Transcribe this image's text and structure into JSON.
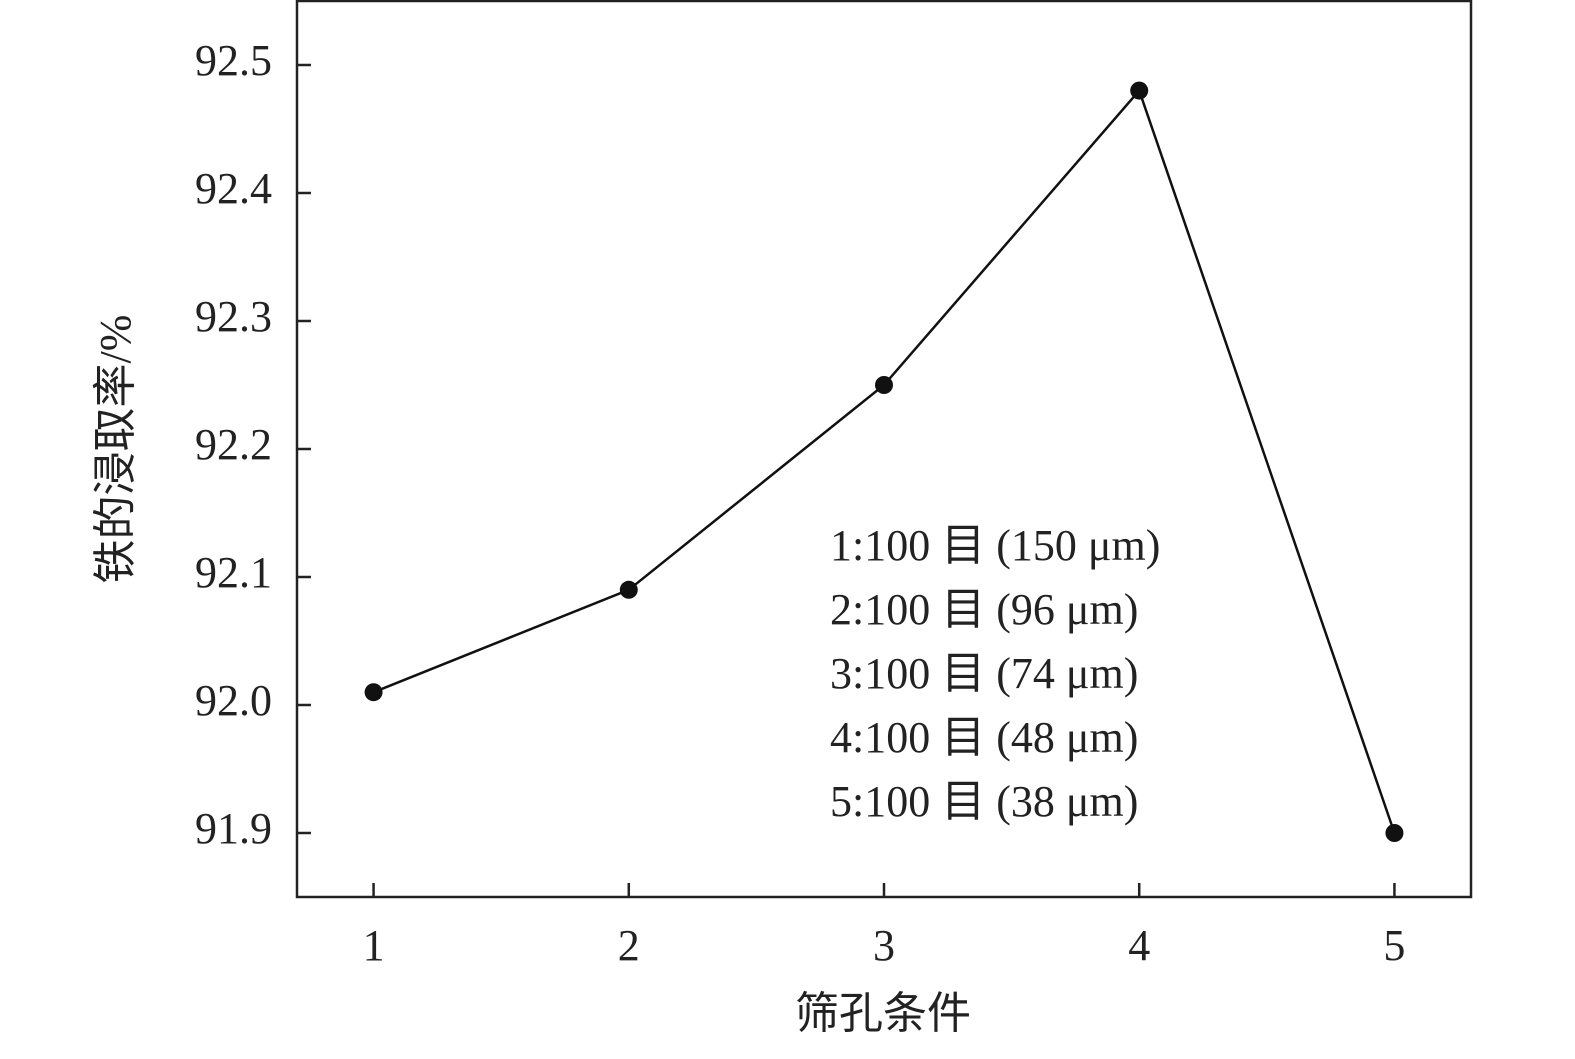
{
  "chart_data": {
    "type": "line",
    "x_label": "筛孔条件",
    "y_label": "铁的浸取率/%",
    "x": [
      1,
      2,
      3,
      4,
      5
    ],
    "values": [
      92.01,
      92.09,
      92.25,
      92.48,
      91.9
    ],
    "color": "#111111",
    "xlim": [
      0.7,
      5.3
    ],
    "xticks": [
      1,
      2,
      3,
      4,
      5
    ],
    "ylim": [
      91.85,
      92.55
    ],
    "yticks": [
      91.9,
      {
        "value": 92,
        "label": "92.0"
      },
      92.1,
      92.2,
      92.3,
      92.4,
      92.5
    ],
    "annotations": [
      "1:100 目 (150 μm)",
      "2:100 目 (96 μm)",
      "3:100 目 (74 μm)",
      "4:100 目 (48 μm)",
      "5:100 目 (38 μm)"
    ]
  }
}
